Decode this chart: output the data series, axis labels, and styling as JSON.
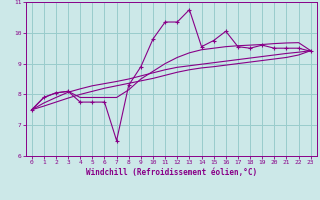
{
  "title": "",
  "xlabel": "Windchill (Refroidissement éolien,°C)",
  "bg_color": "#cce8e8",
  "line_color": "#880088",
  "grid_color": "#99cccc",
  "xlim": [
    -0.5,
    23.5
  ],
  "ylim": [
    6,
    11
  ],
  "xticks": [
    0,
    1,
    2,
    3,
    4,
    5,
    6,
    7,
    8,
    9,
    10,
    11,
    12,
    13,
    14,
    15,
    16,
    17,
    18,
    19,
    20,
    21,
    22,
    23
  ],
  "yticks": [
    6,
    7,
    8,
    9,
    10,
    11
  ],
  "x": [
    0,
    1,
    2,
    3,
    4,
    5,
    6,
    7,
    8,
    9,
    10,
    11,
    12,
    13,
    14,
    15,
    16,
    17,
    18,
    19,
    20,
    21,
    22,
    23
  ],
  "series1": [
    7.5,
    7.9,
    8.05,
    8.1,
    7.75,
    7.75,
    7.75,
    6.5,
    8.3,
    8.9,
    9.8,
    10.35,
    10.35,
    10.75,
    9.55,
    9.75,
    10.05,
    9.55,
    9.5,
    9.6,
    9.5,
    9.5,
    9.5,
    9.4
  ],
  "series2": [
    7.5,
    7.9,
    8.05,
    8.1,
    7.9,
    7.9,
    7.9,
    7.9,
    8.15,
    8.5,
    8.75,
    9.0,
    9.2,
    9.35,
    9.45,
    9.5,
    9.55,
    9.58,
    9.6,
    9.62,
    9.65,
    9.67,
    9.68,
    9.42
  ],
  "series3": [
    7.5,
    7.72,
    7.9,
    8.07,
    8.18,
    8.28,
    8.35,
    8.42,
    8.5,
    8.6,
    8.7,
    8.8,
    8.88,
    8.93,
    8.98,
    9.03,
    9.08,
    9.13,
    9.18,
    9.23,
    9.28,
    9.33,
    9.37,
    9.42
  ],
  "series4": [
    7.5,
    7.62,
    7.75,
    7.88,
    8.0,
    8.1,
    8.2,
    8.28,
    8.36,
    8.44,
    8.52,
    8.62,
    8.72,
    8.8,
    8.86,
    8.9,
    8.95,
    9.0,
    9.05,
    9.1,
    9.15,
    9.2,
    9.28,
    9.42
  ]
}
